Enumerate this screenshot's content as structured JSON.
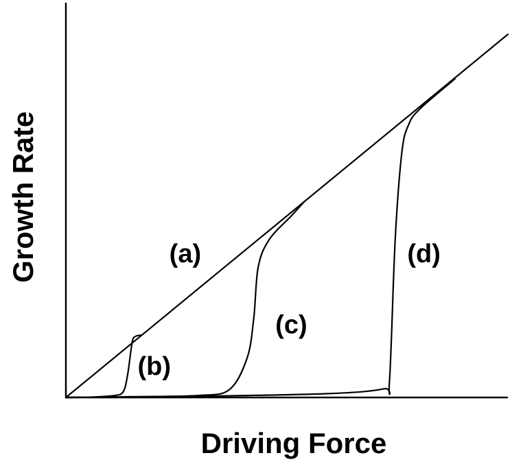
{
  "chart_data": {
    "type": "line",
    "title": "",
    "xlabel": "Driving Force",
    "ylabel": "Growth Rate",
    "xlim": [
      0,
      10
    ],
    "ylim": [
      0,
      10
    ],
    "grid": false,
    "legend": "none",
    "series": [
      {
        "name": "(a)",
        "x": [
          0,
          10
        ],
        "y": [
          0,
          9.2
        ]
      },
      {
        "name": "(b)",
        "x": [
          0,
          0.6,
          1.1,
          1.3,
          1.4,
          1.5,
          1.58,
          1.72
        ],
        "y": [
          0,
          0.01,
          0.05,
          0.15,
          0.6,
          1.4,
          1.55,
          1.58
        ]
      },
      {
        "name": "(c)",
        "x": [
          0,
          1.5,
          3.0,
          3.7,
          4.1,
          4.25,
          4.35,
          4.6,
          5.1,
          5.4
        ],
        "y": [
          0,
          0.02,
          0.05,
          0.2,
          1.0,
          2.0,
          3.3,
          4.0,
          4.6,
          4.97
        ]
      },
      {
        "name": "(d)",
        "x": [
          0,
          3.0,
          6.0,
          7.2,
          7.32,
          7.45,
          7.6,
          7.75,
          8.0,
          8.8
        ],
        "y": [
          0,
          0.03,
          0.1,
          0.22,
          0.4,
          4.0,
          6.2,
          6.9,
          7.3,
          8.07
        ]
      }
    ],
    "annotations": [
      {
        "text": "(a)",
        "x": 2.7,
        "y": 3.6
      },
      {
        "text": "(b)",
        "x": 2.0,
        "y": 0.75
      },
      {
        "text": "(c)",
        "x": 5.1,
        "y": 1.8
      },
      {
        "text": "(d)",
        "x": 8.1,
        "y": 3.6
      }
    ]
  }
}
